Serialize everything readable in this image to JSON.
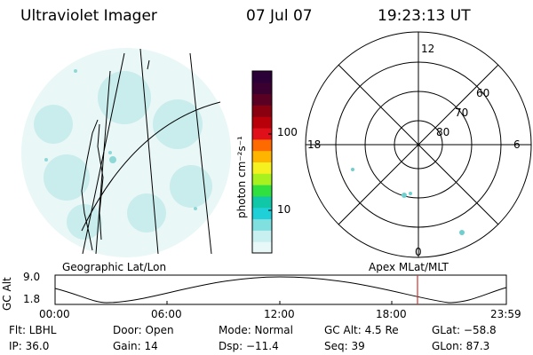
{
  "header": {
    "instrument": "Ultraviolet Imager",
    "date": "07 Jul 07",
    "time": "19:23:13 UT"
  },
  "colorbar": {
    "unit_label": "photon cm⁻²s⁻¹",
    "ticks": [
      {
        "label": "100",
        "value": 100
      },
      {
        "label": "10",
        "value": 10
      }
    ],
    "colors": [
      "#2b0038",
      "#3a0030",
      "#5a0022",
      "#8a0010",
      "#b8000a",
      "#e0101a",
      "#ff6a00",
      "#ffb400",
      "#f5f020",
      "#a8f020",
      "#30e040",
      "#10c8a8",
      "#20d0d8",
      "#80e0e0",
      "#c8f0f0",
      "#e8f8f8"
    ]
  },
  "left_panel": {
    "caption": "Geographic Lat/Lon"
  },
  "right_panel": {
    "caption": "Apex MLat/MLT",
    "mlt_labels": {
      "top": "12",
      "left": "18",
      "right": "6",
      "bottom": "0"
    },
    "lat_labels": [
      "60",
      "70",
      "80"
    ]
  },
  "timeline": {
    "axis_title": "GC Alt",
    "y_ticks": [
      "9.0",
      "1.8"
    ],
    "x_ticks": [
      "00:00",
      "06:00",
      "12:00",
      "18:00",
      "23:59"
    ],
    "marker_color": "#cc3333"
  },
  "status": {
    "filter": "Flt: LBHL",
    "ip": "IP: 36.0",
    "door": "Door: Open",
    "gain": "Gain: 14",
    "mode": "Mode: Normal",
    "dsp": "Dsp: −11.4",
    "gc_alt": "GC Alt: 4.5 Re",
    "seq": "Seq: 39",
    "glat": "GLat: −58.8",
    "glon": "GLon:  87.3"
  }
}
